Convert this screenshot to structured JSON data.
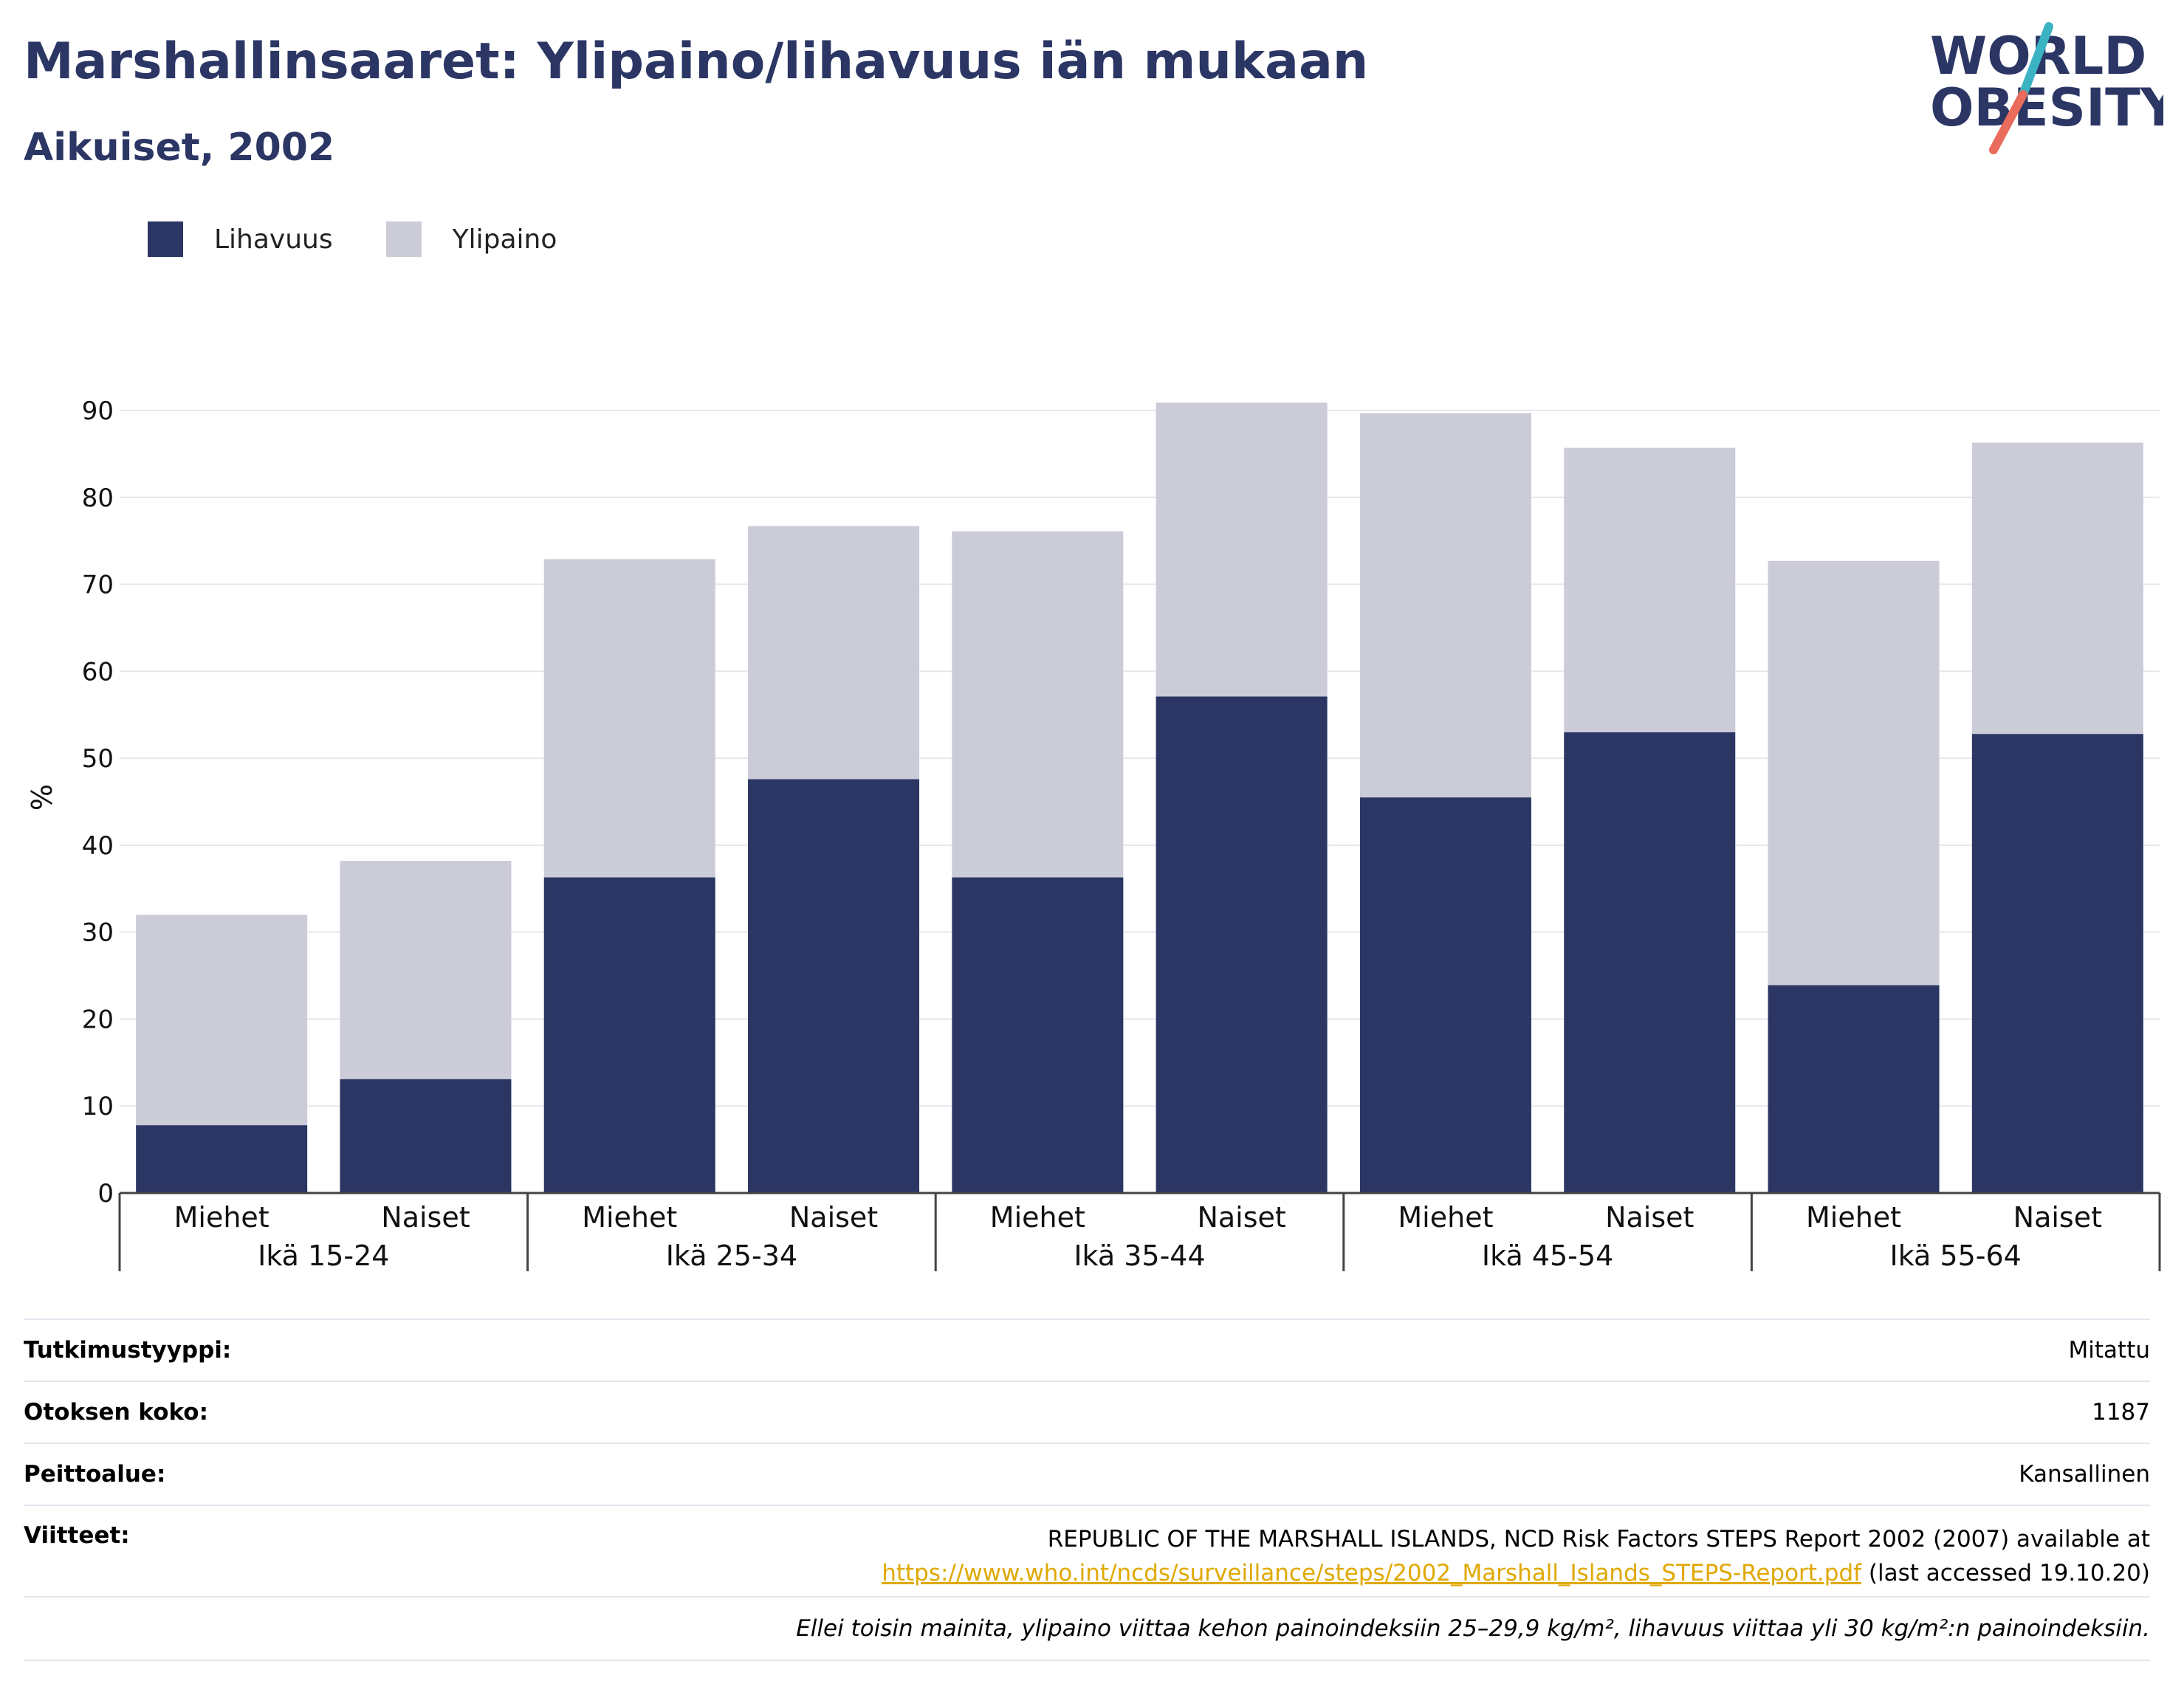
{
  "header": {
    "title": "Marshallinsaaret: Ylipaino/lihavuus iän mukaan",
    "subtitle": "Aikuiset, 2002"
  },
  "logo": {
    "line1": "WORLD",
    "line2": "OBESITY",
    "slash_colors": [
      "#3bb3c3",
      "#e96b5b"
    ],
    "text_color": "#2b3664"
  },
  "legend": {
    "items": [
      {
        "label": "Lihavuus",
        "color": "#2b3664"
      },
      {
        "label": "Ylipaino",
        "color": "#cbccd8"
      }
    ]
  },
  "chart_data": {
    "type": "bar",
    "stacked": true,
    "ylabel": "%",
    "ylim": [
      0,
      90
    ],
    "yticks": [
      0,
      10,
      20,
      30,
      40,
      50,
      60,
      70,
      80,
      90
    ],
    "grid": true,
    "legend_position": "top-left",
    "groups": [
      "Ikä 15-24",
      "Ikä 25-34",
      "Ikä 35-44",
      "Ikä 45-54",
      "Ikä 55-64"
    ],
    "categories": [
      "Miehet",
      "Naiset",
      "Miehet",
      "Naiset",
      "Miehet",
      "Naiset",
      "Miehet",
      "Naiset",
      "Miehet",
      "Naiset"
    ],
    "series": [
      {
        "name": "Lihavuus",
        "color": "#2b3664",
        "values": [
          7.8,
          13.1,
          36.3,
          47.6,
          36.3,
          57.1,
          45.5,
          53.0,
          23.9,
          52.8
        ]
      },
      {
        "name": "Ylipaino",
        "color": "#cbccd8",
        "values": [
          24.2,
          25.1,
          36.6,
          29.1,
          39.8,
          33.8,
          44.2,
          32.7,
          48.8,
          33.5
        ]
      }
    ]
  },
  "info": {
    "rows": [
      {
        "key": "Tutkimustyyppi:",
        "value": "Mitattu"
      },
      {
        "key": "Otoksen koko:",
        "value": "1187"
      },
      {
        "key": "Peittoalue:",
        "value": "Kansallinen"
      }
    ],
    "references": {
      "key": "Viitteet:",
      "line1": "REPUBLIC OF THE MARSHALL ISLANDS, NCD Risk Factors STEPS Report 2002 (2007) available at",
      "link": "https://www.who.int/ncds/surveillance/steps/2002_Marshall_Islands_STEPS-Report.pdf",
      "suffix": "(last accessed 19.10.20)"
    },
    "note": "Ellei toisin mainita, ylipaino viittaa kehon painoindeksiin 25–29,9 kg/m², lihavuus viittaa yli 30 kg/m²:n painoindeksiin."
  }
}
